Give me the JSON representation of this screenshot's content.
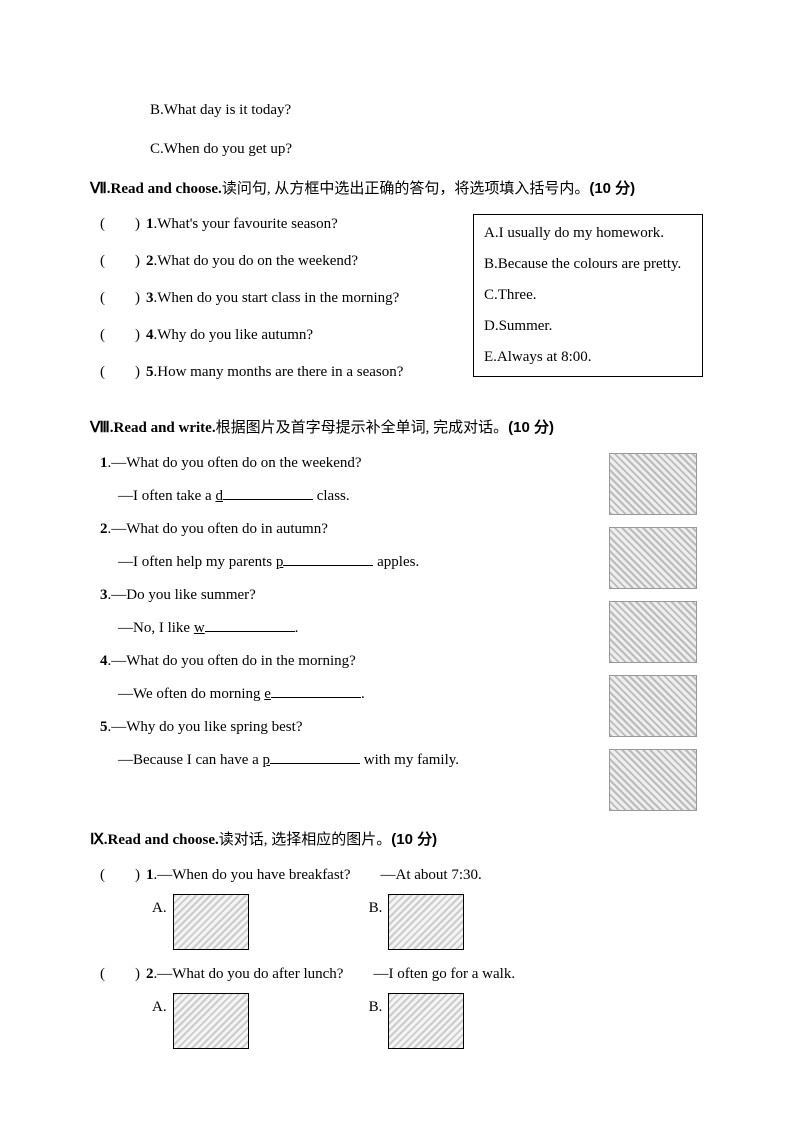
{
  "topOptions": {
    "b": "B.What day is it today?",
    "c": "C.When do you get up?"
  },
  "section7": {
    "title_en": "Ⅶ.Read and choose.",
    "title_cn": "读问句, 从方框中选出正确的答句，将选项填入括号内。",
    "points": "(10 分)",
    "questions": [
      ".What's your favourite season?",
      ".What do you do on the weekend?",
      ".When do you start class in the morning?",
      ".Why do you like autumn?",
      ".How many months are there in a season?"
    ],
    "answers": [
      "A.I usually do my homework.",
      "B.Because the colours are pretty.",
      "C.Three.",
      "D.Summer.",
      "E.Always at 8:00."
    ]
  },
  "section8": {
    "title_en": "Ⅷ.Read and write.",
    "title_cn": "根据图片及首字母提示补全单词, 完成对话。",
    "points": "(10 分)",
    "items": [
      {
        "n": "1",
        "q": ".—What do you often do on the weekend?",
        "a_pre": "—I often take a ",
        "letter": "d",
        "a_post": " class."
      },
      {
        "n": "2",
        "q": ".—What do you often do in autumn?",
        "a_pre": "—I often help my parents ",
        "letter": "p",
        "a_post": " apples."
      },
      {
        "n": "3",
        "q": ".—Do you like summer?",
        "a_pre": "—No, I like ",
        "letter": "w",
        "a_post": "."
      },
      {
        "n": "4",
        "q": ".—What do you often do in the morning?",
        "a_pre": "—We often do morning ",
        "letter": "e",
        "a_post": "."
      },
      {
        "n": "5",
        "q": ".—Why do you like spring best?",
        "a_pre": "—Because I can have a ",
        "letter": "p",
        "a_post": " with my family."
      }
    ]
  },
  "section9": {
    "title_en": "Ⅸ.Read and choose.",
    "title_cn": "读对话, 选择相应的图片。",
    "points": "(10 分)",
    "items": [
      {
        "n": "1",
        "q": ".—When do you have breakfast?",
        "a": "—At about 7:30."
      },
      {
        "n": "2",
        "q": ".—What do you do after lunch?",
        "a": "—I often go for a walk."
      }
    ],
    "optA": "A.",
    "optB": "B."
  }
}
